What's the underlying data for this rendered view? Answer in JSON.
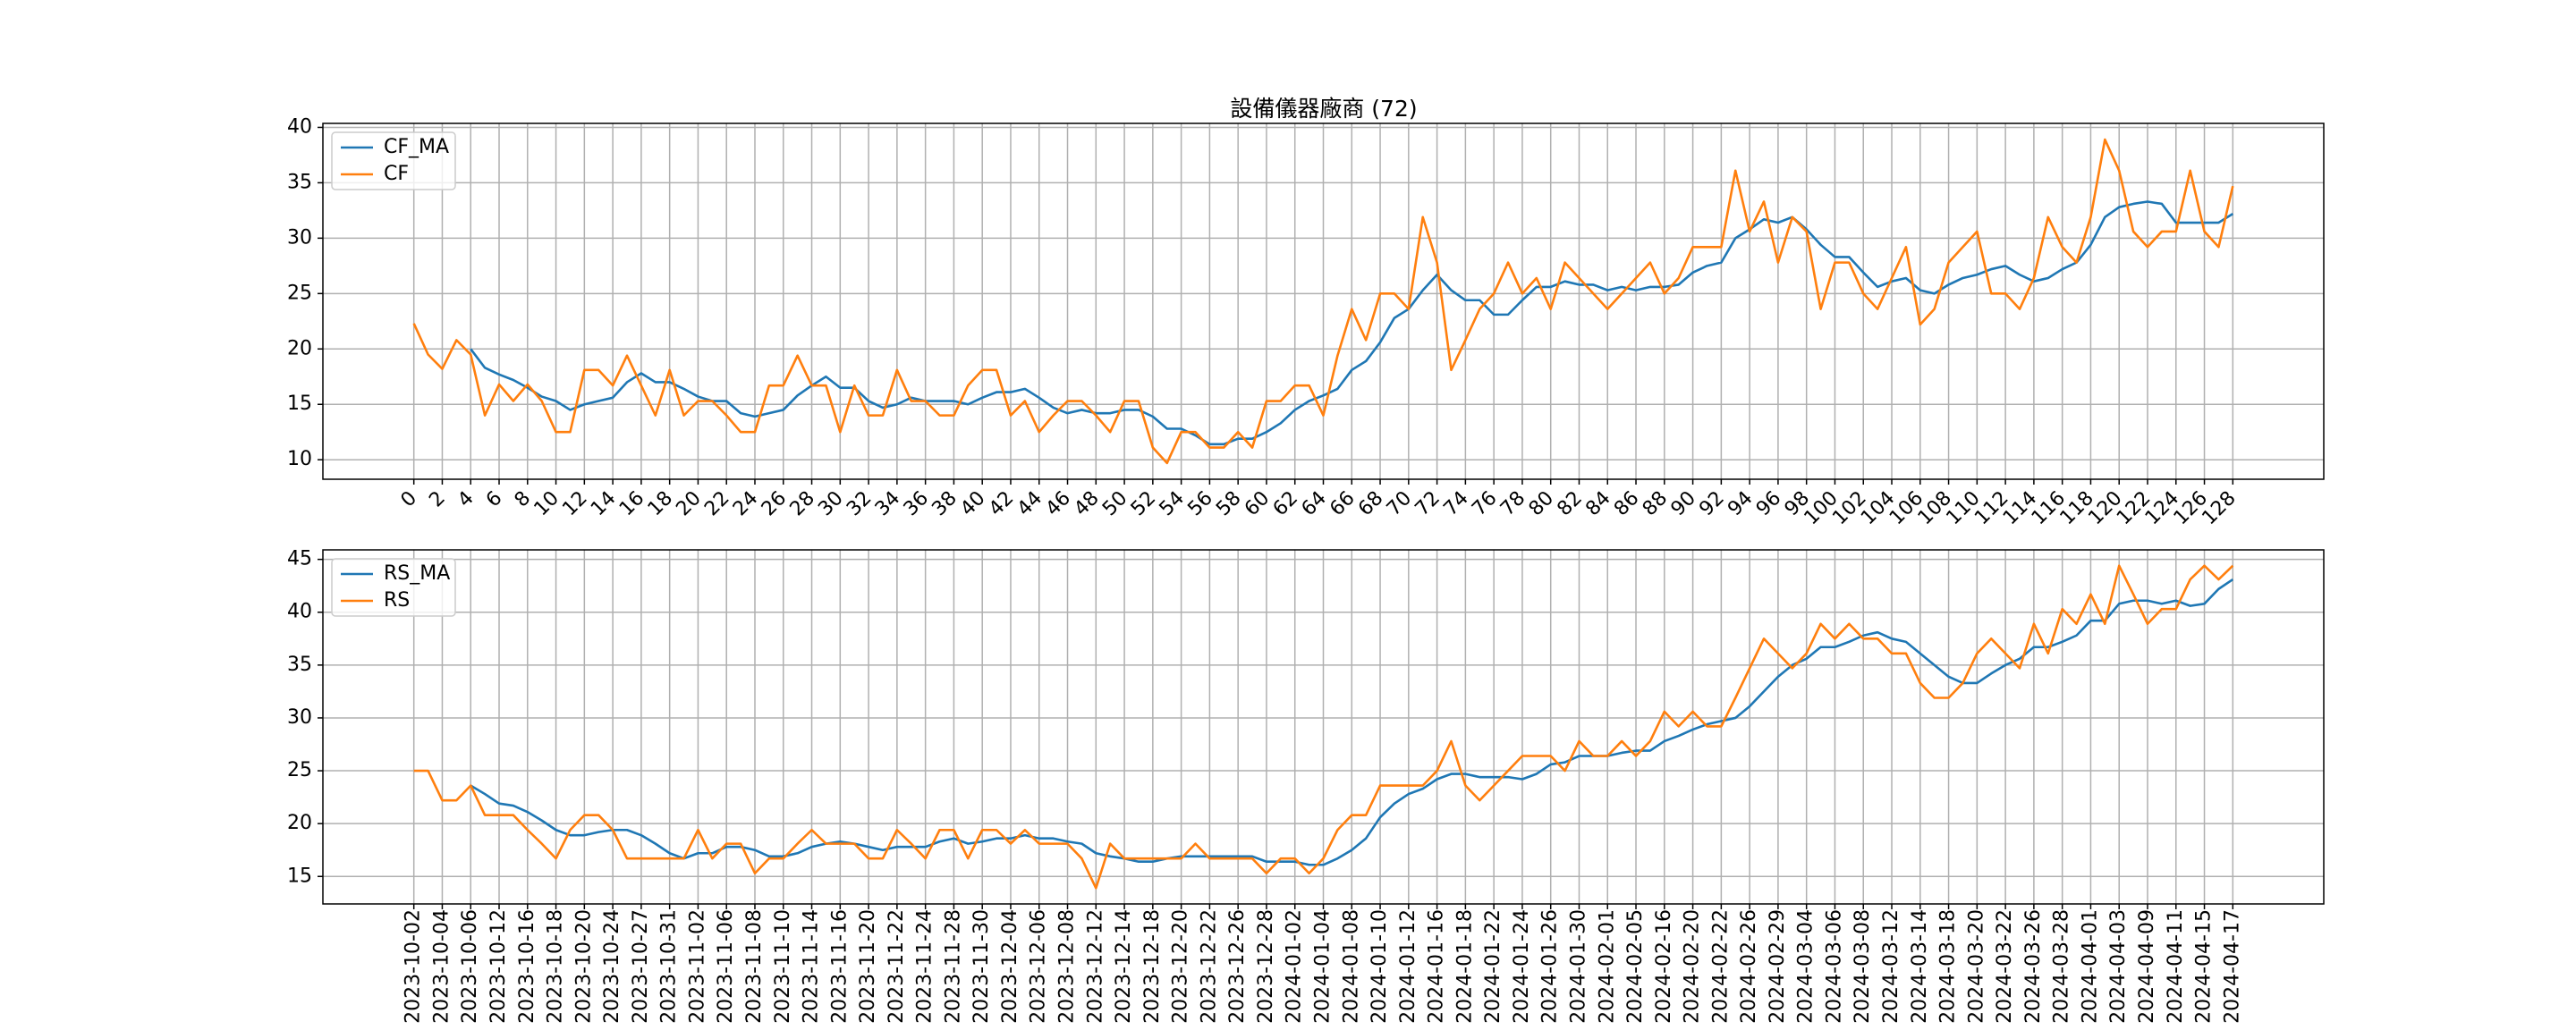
{
  "chart_data": [
    {
      "type": "line",
      "title": "設備儀器廠商 (72)",
      "x": [
        0,
        1,
        2,
        3,
        4,
        5,
        6,
        7,
        8,
        9,
        10,
        11,
        12,
        13,
        14,
        15,
        16,
        17,
        18,
        19,
        20,
        21,
        22,
        23,
        24,
        25,
        26,
        27,
        28,
        29,
        30,
        31,
        32,
        33,
        34,
        35,
        36,
        37,
        38,
        39,
        40,
        41,
        42,
        43,
        44,
        45,
        46,
        47,
        48,
        49,
        50,
        51,
        52,
        53,
        54,
        55,
        56,
        57,
        58,
        59,
        60,
        61,
        62,
        63,
        64,
        65,
        66,
        67,
        68,
        69,
        70,
        71,
        72,
        73,
        74,
        75,
        76,
        77,
        78,
        79,
        80,
        81,
        82,
        83,
        84,
        85,
        86,
        87,
        88,
        89,
        90,
        91,
        92,
        93,
        94,
        95,
        96,
        97,
        98,
        99,
        100,
        101,
        102,
        103,
        104,
        105,
        106,
        107,
        108,
        109,
        110,
        111,
        112,
        113,
        114,
        115,
        116,
        117,
        118,
        119,
        120,
        121,
        122,
        123,
        124,
        125,
        126,
        127,
        128
      ],
      "series": [
        {
          "name": "CF_MA",
          "color": "#1f77b4",
          "values": [
            null,
            null,
            null,
            null,
            20,
            18.3,
            17.7,
            17.2,
            16.5,
            15.7,
            15.3,
            14.5,
            15,
            15.3,
            15.6,
            17,
            17.8,
            17,
            17,
            16.4,
            15.7,
            15.3,
            15.3,
            14.2,
            13.9,
            14.2,
            14.5,
            15.8,
            16.7,
            17.5,
            16.5,
            16.5,
            15.3,
            14.7,
            15,
            15.6,
            15.3,
            15.3,
            15.3,
            15,
            15.6,
            16.1,
            16.1,
            16.4,
            15.6,
            14.7,
            14.2,
            14.5,
            14.2,
            14.2,
            14.5,
            14.5,
            13.9,
            12.8,
            12.8,
            12.2,
            11.4,
            11.4,
            11.9,
            11.9,
            12.5,
            13.3,
            14.5,
            15.3,
            15.8,
            16.4,
            18.1,
            18.9,
            20.6,
            22.8,
            23.6,
            25.3,
            26.7,
            25.3,
            24.4,
            24.4,
            23.1,
            23.1,
            24.4,
            25.6,
            25.6,
            26.1,
            25.8,
            25.8,
            25.3,
            25.6,
            25.3,
            25.6,
            25.6,
            25.8,
            26.9,
            27.5,
            27.8,
            30,
            30.8,
            31.7,
            31.4,
            31.9,
            30.8,
            29.4,
            28.3,
            28.3,
            26.9,
            25.6,
            26.1,
            26.4,
            25.3,
            25,
            25.8,
            26.4,
            26.7,
            27.2,
            27.5,
            26.7,
            26.1,
            26.4,
            27.2,
            27.8,
            29.4,
            31.9,
            32.8,
            33.1,
            33.3,
            33.1,
            31.4,
            31.4,
            31.4,
            31.4,
            32.2
          ]
        },
        {
          "name": "CF",
          "color": "#ff7f0e",
          "values": [
            22.3,
            19.5,
            18.2,
            20.8,
            19.5,
            14,
            16.8,
            15.3,
            16.8,
            15.3,
            12.5,
            12.5,
            18.1,
            18.1,
            16.7,
            19.4,
            16.7,
            14,
            18.1,
            14,
            15.3,
            15.3,
            14,
            12.5,
            12.5,
            16.7,
            16.7,
            19.4,
            16.7,
            16.7,
            12.5,
            16.7,
            14,
            14,
            18.1,
            15.3,
            15.3,
            14,
            14,
            16.7,
            18.1,
            18.1,
            14,
            15.3,
            12.5,
            14,
            15.3,
            15.3,
            14,
            12.5,
            15.3,
            15.3,
            11.1,
            9.7,
            12.5,
            12.5,
            11.1,
            11.1,
            12.5,
            11.1,
            15.3,
            15.3,
            16.7,
            16.7,
            14,
            19.4,
            23.6,
            20.8,
            25,
            25,
            23.6,
            31.9,
            27.8,
            18.1,
            20.8,
            23.6,
            25,
            27.8,
            25,
            26.4,
            23.6,
            27.8,
            26.4,
            25,
            23.6,
            25,
            26.4,
            27.8,
            25,
            26.4,
            29.2,
            29.2,
            29.2,
            36.1,
            30.6,
            33.3,
            27.8,
            31.9,
            30.6,
            23.6,
            27.8,
            27.8,
            25,
            23.6,
            26.4,
            29.2,
            22.2,
            23.6,
            27.8,
            29.2,
            30.6,
            25,
            25,
            23.6,
            26.4,
            31.9,
            29.2,
            27.8,
            31.9,
            38.9,
            36.1,
            30.6,
            29.2,
            30.6,
            30.6,
            36.1,
            30.6,
            29.2,
            34.7
          ]
        }
      ],
      "xlim": [
        -6.4,
        134.4
      ],
      "xticks": [
        0,
        2,
        4,
        6,
        8,
        10,
        12,
        14,
        16,
        18,
        20,
        22,
        24,
        26,
        28,
        30,
        32,
        34,
        36,
        38,
        40,
        42,
        44,
        46,
        48,
        50,
        52,
        54,
        56,
        58,
        60,
        62,
        64,
        66,
        68,
        70,
        72,
        74,
        76,
        78,
        80,
        82,
        84,
        86,
        88,
        90,
        92,
        94,
        96,
        98,
        100,
        102,
        104,
        106,
        108,
        110,
        112,
        114,
        116,
        118,
        120,
        122,
        124,
        126,
        128
      ],
      "ylim": [
        8.24,
        40.36
      ],
      "yticks": [
        10,
        15,
        20,
        25,
        30,
        35,
        40
      ],
      "grid": true,
      "legend": "upper left"
    },
    {
      "type": "line",
      "categories": [
        "2023-10-02",
        null,
        "2023-10-04",
        null,
        "2023-10-06",
        null,
        "2023-10-12",
        null,
        "2023-10-16",
        null,
        "2023-10-18",
        null,
        "2023-10-20",
        null,
        "2023-10-24",
        null,
        "2023-10-27",
        null,
        "2023-10-31",
        null,
        "2023-11-02",
        null,
        "2023-11-06",
        null,
        "2023-11-08",
        null,
        "2023-11-10",
        null,
        "2023-11-14",
        null,
        "2023-11-16",
        null,
        "2023-11-20",
        null,
        "2023-11-22",
        null,
        "2023-11-24",
        null,
        "2023-11-28",
        null,
        "2023-11-30",
        null,
        "2023-12-04",
        null,
        "2023-12-06",
        null,
        "2023-12-08",
        null,
        "2023-12-12",
        null,
        "2023-12-14",
        null,
        "2023-12-18",
        null,
        "2023-12-20",
        null,
        "2023-12-22",
        null,
        "2023-12-26",
        null,
        "2023-12-28",
        null,
        "2024-01-02",
        null,
        "2024-01-04",
        null,
        "2024-01-08",
        null,
        "2024-01-10",
        null,
        "2024-01-12",
        null,
        "2024-01-16",
        null,
        "2024-01-18",
        null,
        "2024-01-22",
        null,
        "2024-01-24",
        null,
        "2024-01-26",
        null,
        "2024-01-30",
        null,
        "2024-02-01",
        null,
        "2024-02-05",
        null,
        "2024-02-16",
        null,
        "2024-02-20",
        null,
        "2024-02-22",
        null,
        "2024-02-26",
        null,
        "2024-02-29",
        null,
        "2024-03-04",
        null,
        "2024-03-06",
        null,
        "2024-03-08",
        null,
        "2024-03-12",
        null,
        "2024-03-14",
        null,
        "2024-03-18",
        null,
        "2024-03-20",
        null,
        "2024-03-22",
        null,
        "2024-03-26",
        null,
        "2024-03-28",
        null,
        "2024-04-01",
        null,
        "2024-04-03",
        null,
        "2024-04-09",
        null,
        "2024-04-11",
        null,
        "2024-04-15",
        null,
        "2024-04-17"
      ],
      "series": [
        {
          "name": "RS_MA",
          "color": "#1f77b4",
          "values": [
            null,
            null,
            null,
            null,
            23.6,
            22.8,
            21.9,
            21.7,
            21.1,
            20.3,
            19.4,
            18.9,
            18.9,
            19.2,
            19.4,
            19.4,
            18.9,
            18.1,
            17.2,
            16.7,
            17.2,
            17.2,
            17.8,
            17.8,
            17.5,
            16.9,
            16.9,
            17.2,
            17.8,
            18.1,
            18.3,
            18.1,
            17.8,
            17.5,
            17.8,
            17.8,
            17.8,
            18.3,
            18.6,
            18.1,
            18.3,
            18.6,
            18.6,
            18.9,
            18.6,
            18.6,
            18.3,
            18.1,
            17.2,
            16.9,
            16.7,
            16.4,
            16.4,
            16.7,
            16.9,
            16.9,
            16.9,
            16.9,
            16.9,
            16.9,
            16.4,
            16.4,
            16.4,
            16.1,
            16.1,
            16.7,
            17.5,
            18.6,
            20.6,
            21.9,
            22.8,
            23.3,
            24.2,
            24.7,
            24.7,
            24.4,
            24.4,
            24.4,
            24.2,
            24.7,
            25.6,
            25.8,
            26.4,
            26.4,
            26.4,
            26.7,
            26.9,
            26.9,
            27.8,
            28.3,
            28.9,
            29.4,
            29.7,
            30,
            31.1,
            32.5,
            33.9,
            35,
            35.6,
            36.7,
            36.7,
            37.2,
            37.8,
            38.1,
            37.5,
            37.2,
            36.1,
            35,
            33.9,
            33.3,
            33.3,
            34.2,
            35,
            35.6,
            36.7,
            36.7,
            37.2,
            37.8,
            39.2,
            39.2,
            40.8,
            41.1,
            41.1,
            40.8,
            41.1,
            40.6,
            40.8,
            42.2,
            43.1
          ]
        },
        {
          "name": "RS",
          "color": "#ff7f0e",
          "values": [
            25,
            25,
            22.2,
            22.2,
            23.6,
            20.8,
            20.8,
            20.8,
            19.4,
            18.1,
            16.7,
            19.4,
            20.8,
            20.8,
            19.4,
            16.7,
            16.7,
            16.7,
            16.7,
            16.7,
            19.4,
            16.7,
            18.1,
            18.1,
            15.3,
            16.7,
            16.7,
            18.1,
            19.4,
            18.1,
            18.1,
            18.1,
            16.7,
            16.7,
            19.4,
            18.1,
            16.7,
            19.4,
            19.4,
            16.7,
            19.4,
            19.4,
            18.1,
            19.4,
            18.1,
            18.1,
            18.1,
            16.7,
            13.9,
            18.1,
            16.7,
            16.7,
            16.7,
            16.7,
            16.7,
            18.1,
            16.7,
            16.7,
            16.7,
            16.7,
            15.3,
            16.7,
            16.7,
            15.3,
            16.7,
            19.4,
            20.8,
            20.8,
            23.6,
            23.6,
            23.6,
            23.6,
            25,
            27.8,
            23.6,
            22.2,
            23.6,
            25,
            26.4,
            26.4,
            26.4,
            25,
            27.8,
            26.4,
            26.4,
            27.8,
            26.4,
            27.8,
            30.6,
            29.2,
            30.6,
            29.2,
            29.2,
            31.9,
            34.7,
            37.5,
            36.1,
            34.7,
            36.1,
            38.9,
            37.5,
            38.9,
            37.5,
            37.5,
            36.1,
            36.1,
            33.3,
            31.9,
            31.9,
            33.3,
            36.1,
            37.5,
            36.1,
            34.7,
            38.9,
            36.1,
            40.3,
            38.9,
            41.7,
            38.9,
            44.4,
            41.7,
            38.9,
            40.3,
            40.3,
            43.1,
            44.4,
            43.1,
            44.4
          ]
        }
      ],
      "ylim": [
        12.4,
        45.9
      ],
      "yticks": [
        15,
        20,
        25,
        30,
        35,
        40,
        45
      ],
      "grid": true,
      "legend": "upper left"
    }
  ]
}
